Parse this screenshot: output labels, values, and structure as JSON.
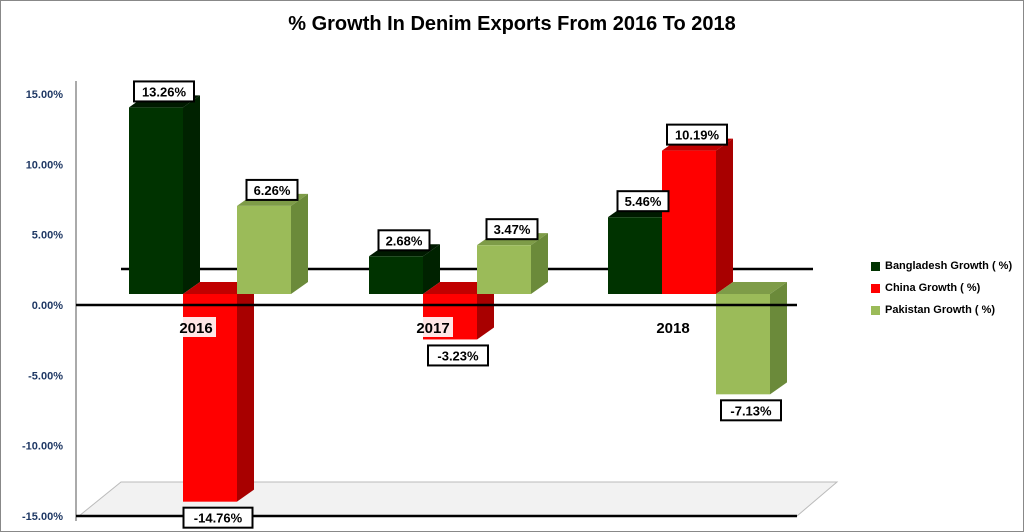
{
  "chart_data": {
    "type": "bar",
    "title": "% Growth In Denim Exports From 2016 To 2018",
    "categories": [
      "2016",
      "2017",
      "2018"
    ],
    "series": [
      {
        "name": "Bangladesh Growth ( %)",
        "values": [
          13.26,
          2.68,
          5.46
        ],
        "labels": [
          "13.26%",
          "2.68%",
          "5.46%"
        ],
        "color": "#003300",
        "side": "#002200",
        "top": "#001a00"
      },
      {
        "name": "China Growth ( %)",
        "values": [
          -14.76,
          -3.23,
          10.19
        ],
        "labels": [
          "-14.76%",
          "-3.23%",
          "10.19%"
        ],
        "color": "#ff0000",
        "side": "#a80000",
        "top": "#c00000"
      },
      {
        "name": "Pakistan Growth ( %)",
        "values": [
          6.26,
          3.47,
          -7.13
        ],
        "labels": [
          "6.26%",
          "3.47%",
          "-7.13%"
        ],
        "color": "#9bbb59",
        "side": "#6b8a3a",
        "top": "#7e9c48"
      }
    ],
    "yticks": [
      "15.00%",
      "10.00%",
      "5.00%",
      "0.00%",
      "-5.00%",
      "-10.00%",
      "-15.00%"
    ],
    "ytick_values": [
      15,
      10,
      5,
      0,
      -5,
      -10,
      -15
    ],
    "ylim": [
      -15,
      15
    ],
    "legend": "right",
    "xlabel": "",
    "ylabel": ""
  }
}
